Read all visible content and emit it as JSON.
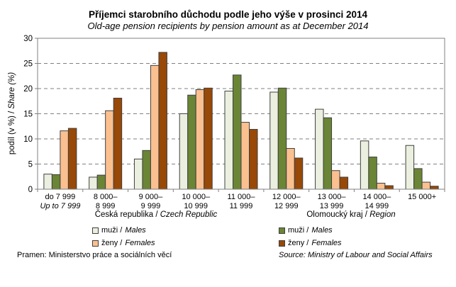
{
  "chart_data": {
    "type": "bar",
    "title": "Příjemci starobního důchodu podle jeho výše v prosinci 2014",
    "subtitle": "Old-age pension recipients by pension amount as at December 2014",
    "ylabel_cz": "podíl (v %)",
    "ylabel_en": "Share (%)",
    "ylabel_sep": " / ",
    "ylim": [
      0,
      30
    ],
    "yticks": [
      0,
      5,
      10,
      15,
      20,
      25,
      30
    ],
    "grid": true,
    "categories": [
      {
        "line1": "do 7 999",
        "line2": "Up to 7 999"
      },
      {
        "line1": "8 000–",
        "line2": "8 999"
      },
      {
        "line1": "9 000–",
        "line2": "9 999"
      },
      {
        "line1": "10 000–",
        "line2": "10 999"
      },
      {
        "line1": "11 000–",
        "line2": "11 999"
      },
      {
        "line1": "12 000–",
        "line2": "12 999"
      },
      {
        "line1": "13 000–",
        "line2": "13 999"
      },
      {
        "line1": "14 000–",
        "line2": "14 999"
      },
      {
        "line1": "15 000+",
        "line2": ""
      }
    ],
    "series": [
      {
        "name": "Česká republika – muži / Males",
        "color": "#ebefdf",
        "values": [
          3.0,
          2.4,
          6.0,
          15.0,
          19.5,
          19.3,
          15.9,
          9.6,
          8.7
        ]
      },
      {
        "name": "Olomoucký kraj – muži / Males",
        "color": "#6a8535",
        "values": [
          2.9,
          2.8,
          7.7,
          18.7,
          22.7,
          20.1,
          14.2,
          6.4,
          4.1
        ]
      },
      {
        "name": "Česká republika – ženy / Females",
        "color": "#fac090",
        "values": [
          11.6,
          15.6,
          24.6,
          19.8,
          13.3,
          8.1,
          3.7,
          1.2,
          1.4
        ]
      },
      {
        "name": "Olomoucký kraj – ženy / Females",
        "color": "#984807",
        "values": [
          12.1,
          18.1,
          27.2,
          20.1,
          11.9,
          6.2,
          2.4,
          0.7,
          0.6
        ]
      }
    ]
  },
  "group_labels": {
    "cz": {
      "a": "Česká republika",
      "sep": " / ",
      "b": "Czech Republic"
    },
    "region": {
      "a": "Olomoucký kraj",
      "sep": " / ",
      "b": "Region"
    }
  },
  "legend": {
    "cz_males": {
      "a": "muži / ",
      "b": "Males"
    },
    "cz_females": {
      "a": "ženy / ",
      "b": "Females"
    },
    "reg_males": {
      "a": "muži / ",
      "b": "Males"
    },
    "reg_females": {
      "a": "ženy / ",
      "b": "Females"
    }
  },
  "source": {
    "cz": "Pramen: Ministerstvo práce a sociálních věcí",
    "en": "Source: Ministry of Labour and Social Affairs"
  }
}
